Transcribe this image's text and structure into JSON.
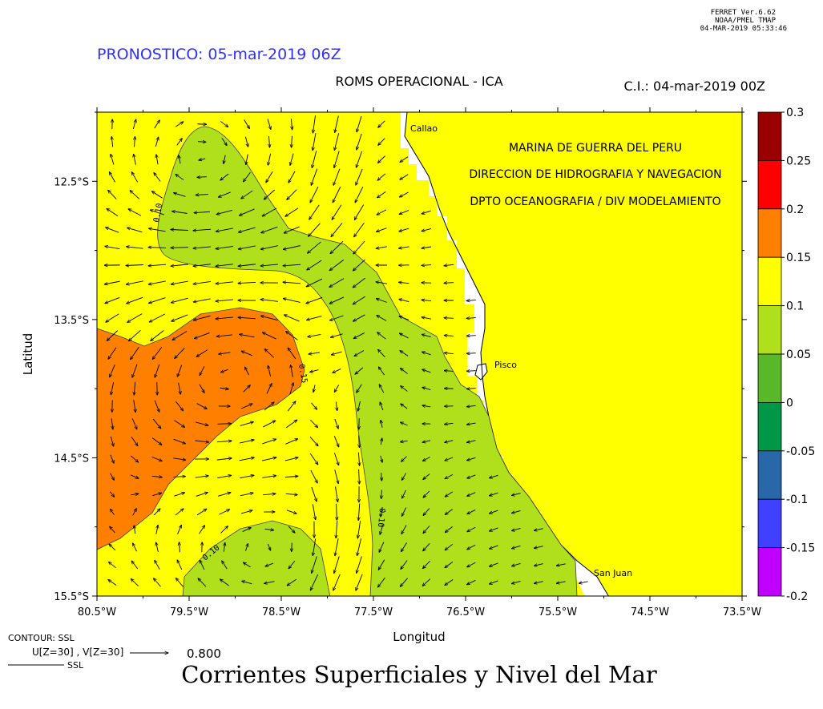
{
  "header": {
    "ferret_line1": "FERRET  Ver.6.62",
    "ferret_line2": "NOAA/PMEL TMAP",
    "ferret_line3": "04-MAR-2019 05:33:46",
    "forecast": "PRONOSTICO: 05-mar-2019 06Z",
    "subtitle": "ROMS OPERACIONAL - ICA",
    "init": "C.I.: 04-mar-2019 00Z"
  },
  "institution": [
    "MARINA DE GUERRA DEL PERU",
    "DIRECCION DE HIDROGRAFIA Y NAVEGACION",
    "DPTO OCEANOGRAFIA / DIV MODELAMIENTO"
  ],
  "places": [
    "Callao",
    "Pisco",
    "San Juan"
  ],
  "footer": {
    "contour": "CONTOUR: SSL",
    "vector": "U[Z=30] , V[Z=30]",
    "vector_scale": "0.800",
    "ssl": "SSL",
    "caption": "Corrientes Superficiales y Nivel del Mar"
  },
  "chart_data": {
    "type": "heatmap",
    "title": "Corrientes Superficiales y Nivel del Mar",
    "xlabel": "Longitud",
    "ylabel": "Latitud",
    "xlim": [
      -80.5,
      -73.5
    ],
    "ylim": [
      -15.5,
      -12.0
    ],
    "x_ticks": [
      "80.5°W",
      "79.5°W",
      "78.5°W",
      "77.5°W",
      "76.5°W",
      "75.5°W",
      "74.5°W",
      "73.5°W"
    ],
    "y_ticks": [
      "12.5°S",
      "13.5°S",
      "14.5°S",
      "15.5°S"
    ],
    "colorbar": {
      "levels": [
        0.3,
        0.25,
        0.2,
        0.15,
        0.1,
        0.05,
        0,
        -0.05,
        -0.1,
        -0.15,
        -0.2
      ],
      "labels": [
        "0.3",
        "0.25",
        "0.2",
        "0.15",
        "0.1",
        "0.05",
        "0",
        "-0.05",
        "-0.1",
        "-0.15",
        "-0.2"
      ],
      "colors": [
        "#9b0000",
        "#ff0000",
        "#ff8000",
        "#ffff00",
        "#b0e01c",
        "#58b82a",
        "#009848",
        "#2868a8",
        "#4040ff",
        "#c000ff"
      ]
    },
    "contour_labels": [
      "0.10",
      "0.15",
      "0.10",
      "0.10"
    ],
    "land_color": "#ffff00",
    "coast_color": "#ffffff"
  }
}
